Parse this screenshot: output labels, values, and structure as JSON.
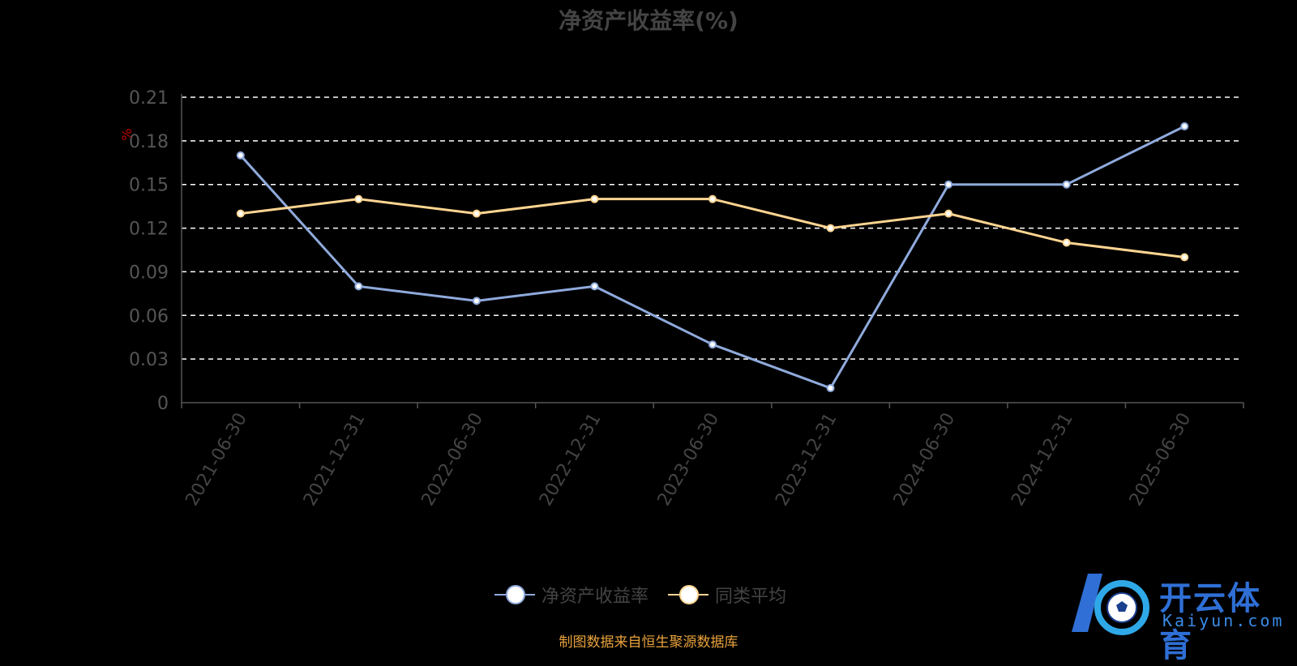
{
  "chart_data": {
    "type": "line",
    "title": "净资产收益率(%)",
    "ylabel": "%",
    "xlabel": "",
    "ylim": [
      0,
      0.21
    ],
    "yticks": [
      "0",
      "0.03",
      "0.06",
      "0.09",
      "0.12",
      "0.15",
      "0.18",
      "0.21"
    ],
    "yticks_values": [
      0,
      0.03,
      0.06,
      0.09,
      0.12,
      0.15,
      0.18,
      0.21
    ],
    "categories": [
      "2021-06-30",
      "2021-12-31",
      "2022-06-30",
      "2022-12-31",
      "2023-06-30",
      "2023-12-31",
      "2024-06-30",
      "2024-12-31",
      "2025-06-30"
    ],
    "grid": "horizontal-dashed",
    "legend_position": "bottom",
    "series": [
      {
        "name": "净资产收益率",
        "color": "#8faadc",
        "values": [
          0.17,
          0.08,
          0.07,
          0.08,
          0.04,
          0.01,
          0.15,
          0.15,
          0.19
        ]
      },
      {
        "name": "同类平均",
        "color": "#ffd591",
        "values": [
          0.13,
          0.14,
          0.13,
          0.14,
          0.14,
          0.12,
          0.13,
          0.11,
          0.1
        ]
      }
    ]
  },
  "footer": {
    "source": "制图数据来自恒生聚源数据库"
  },
  "logo": {
    "text": "开云体育",
    "sub": "Kaiyun.com",
    "color": "#2f6fd6"
  }
}
